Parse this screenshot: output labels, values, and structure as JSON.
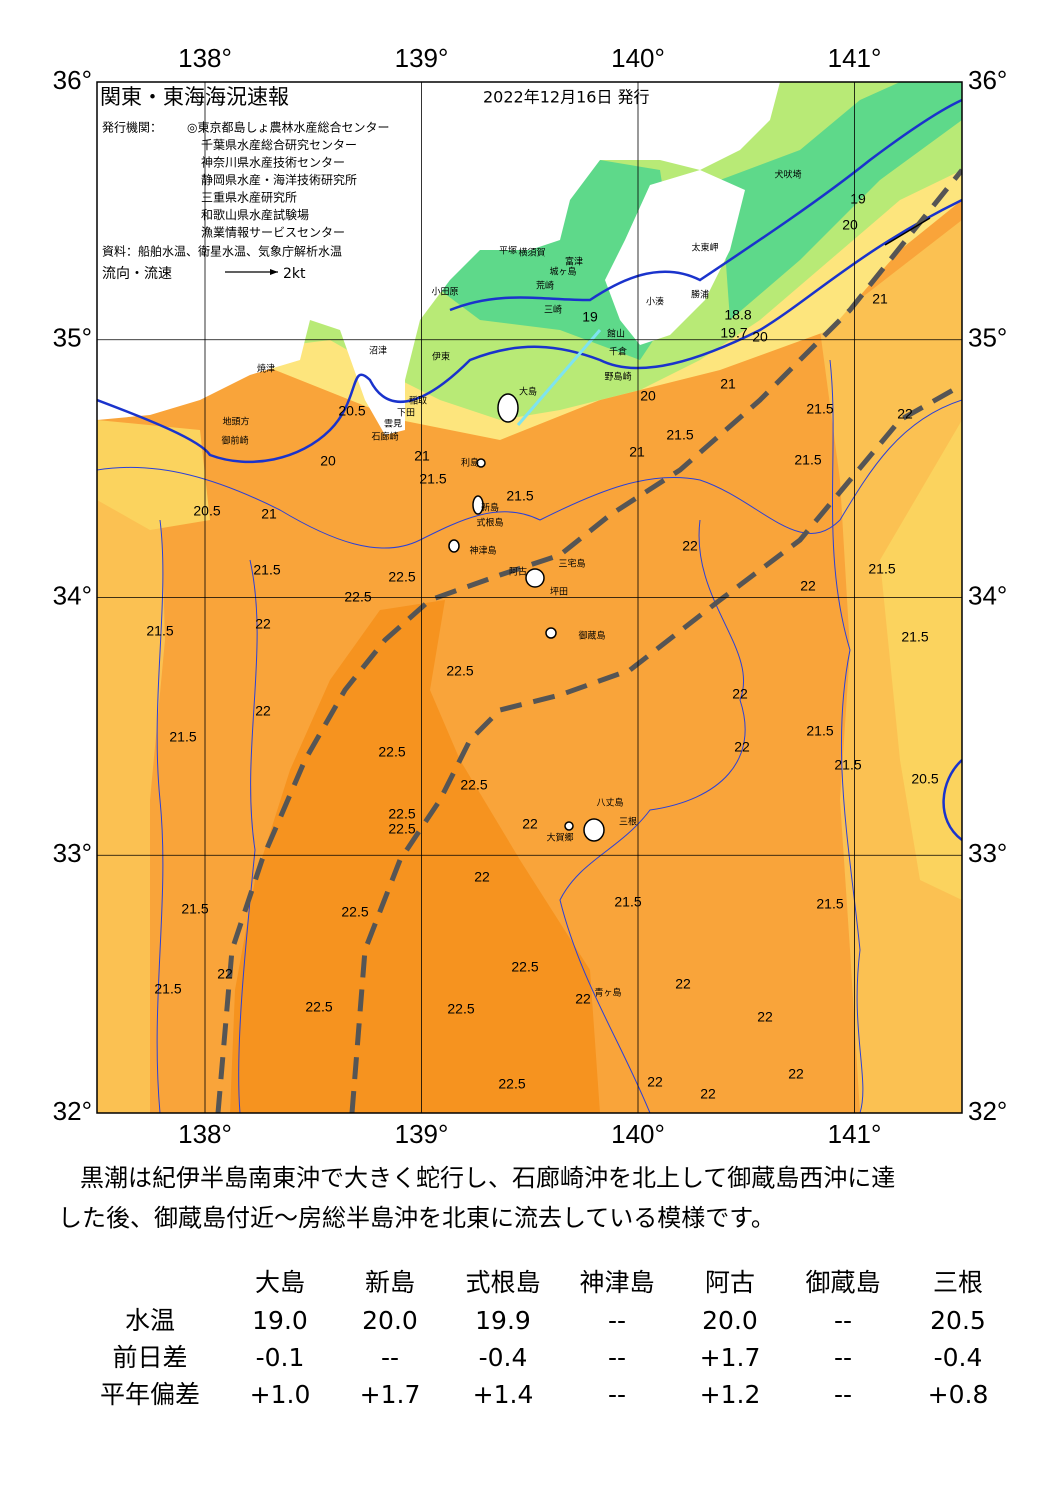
{
  "map": {
    "title": "関東・東海海況速報",
    "date": "2022年12月16日 発行",
    "issuer_heading": "発行機関：",
    "issuers": [
      "◎東京都島しょ農林水産総合センター",
      "千葉県水産総合研究センター",
      "神奈川県水産技術センター",
      "静岡県水産・海洋技術研究所",
      "三重県水産研究所",
      "和歌山県水産試験場",
      "漁業情報サービスセンター"
    ],
    "source": "資料：船舶水温、衛星水温、気象庁解析水温",
    "legend_label": "流向・流速",
    "legend_speed": "2kt",
    "lon_ticks": [
      {
        "value": 138,
        "label": "138°"
      },
      {
        "value": 139,
        "label": "139°"
      },
      {
        "value": 140,
        "label": "140°"
      },
      {
        "value": 141,
        "label": "141°"
      }
    ],
    "lat_ticks": [
      {
        "value": 36,
        "label": "36°"
      },
      {
        "value": 35,
        "label": "35°"
      },
      {
        "value": 34,
        "label": "34°"
      },
      {
        "value": 33,
        "label": "33°"
      },
      {
        "value": 32,
        "label": "32°"
      }
    ],
    "places": [
      "小田原",
      "平塚",
      "横須賀",
      "富津",
      "城ヶ島",
      "荒崎",
      "三崎",
      "太東岬",
      "犬吠埼",
      "小湊",
      "勝浦",
      "館山",
      "千倉",
      "野島崎",
      "大島",
      "沼津",
      "伊東",
      "稲取",
      "下田",
      "雲見",
      "石廊崎",
      "焼津",
      "地頭方",
      "御前崎",
      "利島",
      "新島",
      "式根島",
      "神津島",
      "三宅島",
      "阿古",
      "坪田",
      "御蔵島",
      "八丈島",
      "三根",
      "大賀郷",
      "青ヶ島"
    ],
    "contour_labels": [
      "19",
      "18.8",
      "19.7",
      "20",
      "20",
      "21",
      "21.5",
      "21.5",
      "21.5",
      "21",
      "21.5",
      "21.5",
      "22",
      "22",
      "21.5",
      "21.5",
      "22",
      "22",
      "21.5",
      "21.5",
      "20.5",
      "22.5",
      "22.5",
      "22",
      "22",
      "21.5",
      "21.5",
      "21.5",
      "21.5",
      "22",
      "22.5",
      "22.5",
      "22.5",
      "22.5",
      "22",
      "22",
      "22",
      "22",
      "22",
      "22.5",
      "19",
      "20",
      "21",
      "22",
      "21",
      "22",
      "20.5",
      "20",
      "20.5",
      "21",
      "21.5",
      "21.5",
      "22.5",
      "22.5",
      "22",
      "22.5",
      "21.5",
      "22",
      "22.5",
      "22.5"
    ]
  },
  "description": [
    "黒潮は紀伊半島南東沖で大きく蛇行し、石廊崎沖を北上して御蔵島西沖に達",
    "した後、御蔵島付近～房総半島沖を北東に流去している模様です。"
  ],
  "table": {
    "columns": [
      "大島",
      "新島",
      "式根島",
      "神津島",
      "阿古",
      "御蔵島",
      "三根"
    ],
    "rows": [
      {
        "label": "水温",
        "cells": [
          "19.0",
          "20.0",
          "19.9",
          "--",
          "20.0",
          "--",
          "20.5"
        ]
      },
      {
        "label": "前日差",
        "cells": [
          "-0.1",
          "--",
          "-0.4",
          "--",
          "+1.7",
          "--",
          "-0.4"
        ]
      },
      {
        "label": "平年偏差",
        "cells": [
          "+1.0",
          "+1.7",
          "+1.4",
          "--",
          "+1.2",
          "--",
          "+0.8"
        ]
      }
    ]
  }
}
